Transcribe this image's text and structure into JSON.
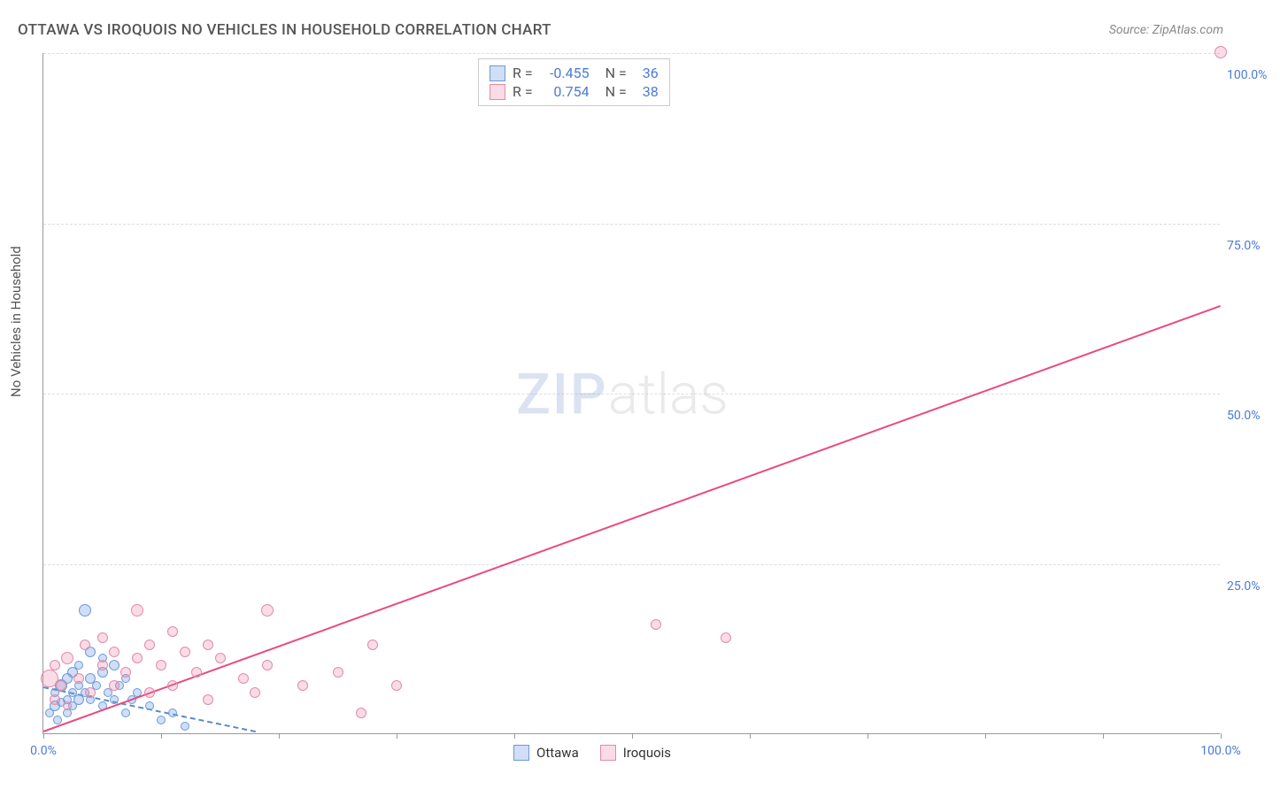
{
  "title": "OTTAWA VS IROQUOIS NO VEHICLES IN HOUSEHOLD CORRELATION CHART",
  "source_prefix": "Source: ",
  "source_name": "ZipAtlas.com",
  "y_axis_label": "No Vehicles in Household",
  "watermark_zip": "ZIP",
  "watermark_atlas": "atlas",
  "chart": {
    "type": "scatter",
    "xlim": [
      0,
      100
    ],
    "ylim": [
      0,
      100
    ],
    "x_ticks": [
      0,
      10,
      20,
      30,
      40,
      50,
      60,
      70,
      80,
      90,
      100
    ],
    "x_tick_labels": {
      "0": "0.0%",
      "100": "100.0%"
    },
    "y_gridlines": [
      25,
      50,
      75,
      100
    ],
    "y_tick_labels": {
      "25": "25.0%",
      "50": "50.0%",
      "75": "75.0%",
      "100": "100.0%"
    },
    "grid_color": "#dddddd",
    "background_color": "#ffffff",
    "axis_color": "#999999",
    "tick_label_color": "#4a7bd8",
    "series": [
      {
        "name": "Ottawa",
        "fill_color": "rgba(120,160,230,0.35)",
        "stroke_color": "#6a9ad8",
        "trend_color": "#5a8acb",
        "trend_dashed": true,
        "R": "-0.455",
        "N": "36",
        "trend": {
          "x1": 0,
          "y1": 7,
          "x2": 18,
          "y2": 0.5
        },
        "points": [
          {
            "x": 0.5,
            "y": 3,
            "r": 5
          },
          {
            "x": 1,
            "y": 4,
            "r": 6
          },
          {
            "x": 1,
            "y": 6,
            "r": 5
          },
          {
            "x": 1.2,
            "y": 2,
            "r": 5
          },
          {
            "x": 1.5,
            "y": 7,
            "r": 7
          },
          {
            "x": 1.5,
            "y": 4.5,
            "r": 5
          },
          {
            "x": 2,
            "y": 3,
            "r": 5
          },
          {
            "x": 2,
            "y": 8,
            "r": 6
          },
          {
            "x": 2,
            "y": 5,
            "r": 5
          },
          {
            "x": 2.5,
            "y": 6,
            "r": 5
          },
          {
            "x": 2.5,
            "y": 9,
            "r": 6
          },
          {
            "x": 2.5,
            "y": 4,
            "r": 5
          },
          {
            "x": 3,
            "y": 5,
            "r": 6
          },
          {
            "x": 3,
            "y": 7,
            "r": 5
          },
          {
            "x": 3,
            "y": 10,
            "r": 5
          },
          {
            "x": 3.5,
            "y": 18,
            "r": 7
          },
          {
            "x": 3.5,
            "y": 6,
            "r": 5
          },
          {
            "x": 4,
            "y": 8,
            "r": 6
          },
          {
            "x": 4,
            "y": 5,
            "r": 5
          },
          {
            "x": 4,
            "y": 12,
            "r": 6
          },
          {
            "x": 4.5,
            "y": 7,
            "r": 5
          },
          {
            "x": 5,
            "y": 9,
            "r": 6
          },
          {
            "x": 5,
            "y": 4,
            "r": 5
          },
          {
            "x": 5,
            "y": 11,
            "r": 5
          },
          {
            "x": 5.5,
            "y": 6,
            "r": 5
          },
          {
            "x": 6,
            "y": 10,
            "r": 6
          },
          {
            "x": 6,
            "y": 5,
            "r": 5
          },
          {
            "x": 6.5,
            "y": 7,
            "r": 5
          },
          {
            "x": 7,
            "y": 3,
            "r": 5
          },
          {
            "x": 7,
            "y": 8,
            "r": 5
          },
          {
            "x": 7.5,
            "y": 5,
            "r": 5
          },
          {
            "x": 8,
            "y": 6,
            "r": 5
          },
          {
            "x": 9,
            "y": 4,
            "r": 5
          },
          {
            "x": 10,
            "y": 2,
            "r": 5
          },
          {
            "x": 11,
            "y": 3,
            "r": 5
          },
          {
            "x": 12,
            "y": 1,
            "r": 5
          }
        ]
      },
      {
        "name": "Iroquois",
        "fill_color": "rgba(235,130,165,0.28)",
        "stroke_color": "#e589a9",
        "trend_color": "#e94b7f",
        "trend_dashed": false,
        "R": "0.754",
        "N": "38",
        "trend": {
          "x1": 0,
          "y1": 0.5,
          "x2": 100,
          "y2": 63
        },
        "points": [
          {
            "x": 0.5,
            "y": 8,
            "r": 10
          },
          {
            "x": 1,
            "y": 5,
            "r": 6
          },
          {
            "x": 1,
            "y": 10,
            "r": 6
          },
          {
            "x": 1.5,
            "y": 7,
            "r": 6
          },
          {
            "x": 2,
            "y": 11,
            "r": 7
          },
          {
            "x": 2,
            "y": 4,
            "r": 5
          },
          {
            "x": 3,
            "y": 8,
            "r": 6
          },
          {
            "x": 3.5,
            "y": 13,
            "r": 6
          },
          {
            "x": 4,
            "y": 6,
            "r": 6
          },
          {
            "x": 5,
            "y": 10,
            "r": 6
          },
          {
            "x": 5,
            "y": 14,
            "r": 6
          },
          {
            "x": 6,
            "y": 7,
            "r": 6
          },
          {
            "x": 6,
            "y": 12,
            "r": 6
          },
          {
            "x": 7,
            "y": 9,
            "r": 6
          },
          {
            "x": 8,
            "y": 11,
            "r": 6
          },
          {
            "x": 8,
            "y": 18,
            "r": 7
          },
          {
            "x": 9,
            "y": 6,
            "r": 6
          },
          {
            "x": 9,
            "y": 13,
            "r": 6
          },
          {
            "x": 10,
            "y": 10,
            "r": 6
          },
          {
            "x": 11,
            "y": 15,
            "r": 6
          },
          {
            "x": 11,
            "y": 7,
            "r": 6
          },
          {
            "x": 12,
            "y": 12,
            "r": 6
          },
          {
            "x": 13,
            "y": 9,
            "r": 6
          },
          {
            "x": 14,
            "y": 13,
            "r": 6
          },
          {
            "x": 14,
            "y": 5,
            "r": 6
          },
          {
            "x": 15,
            "y": 11,
            "r": 6
          },
          {
            "x": 17,
            "y": 8,
            "r": 6
          },
          {
            "x": 18,
            "y": 6,
            "r": 6
          },
          {
            "x": 19,
            "y": 18,
            "r": 7
          },
          {
            "x": 19,
            "y": 10,
            "r": 6
          },
          {
            "x": 22,
            "y": 7,
            "r": 6
          },
          {
            "x": 25,
            "y": 9,
            "r": 6
          },
          {
            "x": 27,
            "y": 3,
            "r": 6
          },
          {
            "x": 28,
            "y": 13,
            "r": 6
          },
          {
            "x": 30,
            "y": 7,
            "r": 6
          },
          {
            "x": 52,
            "y": 16,
            "r": 6
          },
          {
            "x": 58,
            "y": 14,
            "r": 6
          },
          {
            "x": 100,
            "y": 100,
            "r": 7
          }
        ]
      }
    ]
  },
  "legend_top": {
    "r_label": "R =",
    "n_label": "N ="
  },
  "legend_bottom_labels": [
    "Ottawa",
    "Iroquois"
  ]
}
